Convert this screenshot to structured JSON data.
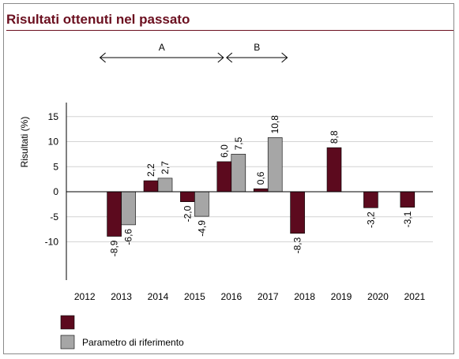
{
  "title": "Risultati ottenuti nel passato",
  "chart_data": {
    "type": "bar",
    "categories": [
      "2012",
      "2013",
      "2014",
      "2015",
      "2016",
      "2017",
      "2018",
      "2019",
      "2020",
      "2021"
    ],
    "series": [
      {
        "name": "",
        "color": "#5c0a1e",
        "values": [
          null,
          -8.9,
          2.2,
          -2.0,
          6.0,
          0.6,
          -8.3,
          8.8,
          -3.2,
          -3.1
        ],
        "labels": [
          "",
          "-8,9",
          "2,2",
          "-2,0",
          "6,0",
          "0,6",
          "-8,3",
          "8,8",
          "-3,2",
          "-3,1"
        ]
      },
      {
        "name": "Parametro di riferimento",
        "color": "#a6a6a6",
        "values": [
          null,
          -6.6,
          2.7,
          -4.9,
          7.5,
          10.8,
          null,
          null,
          null,
          null
        ],
        "labels": [
          "",
          "-6,6",
          "2,7",
          "-4,9",
          "7,5",
          "10,8",
          "",
          "",
          "",
          ""
        ]
      }
    ],
    "ylabel": "Risultati (%)",
    "yticks": [
      {
        "value": 15,
        "label": "15"
      },
      {
        "value": 10,
        "label": "10"
      },
      {
        "value": 5,
        "label": "5"
      },
      {
        "value": 0,
        "label": "0"
      },
      {
        "value": -5,
        "label": "-5"
      },
      {
        "value": -10,
        "label": "-10"
      }
    ],
    "ylim": [
      -17,
      17
    ],
    "grid": true,
    "legend": "bottom-left",
    "periods": [
      {
        "label": "A",
        "from": "2013",
        "to": "2016"
      },
      {
        "label": "B",
        "from": "2016",
        "to": "2018"
      }
    ]
  }
}
